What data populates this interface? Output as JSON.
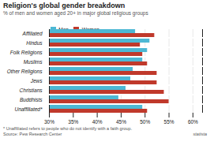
{
  "chart_data": {
    "type": "bar",
    "orientation": "horizontal",
    "title": "Religion's global gender breakdown",
    "subtitle": "% of men and women aged 20+ in major global religious groups",
    "categories": [
      "Affiliated",
      "Hindus",
      "Folk Religions",
      "Muslims",
      "Other Religions",
      "Jews",
      "Christians",
      "Buddhists",
      "Unaffiliated*"
    ],
    "series": [
      {
        "name": "Men",
        "color": "#4db8d4",
        "values": [
          48.0,
          51.0,
          50.5,
          49.5,
          47.5,
          47.0,
          46.0,
          44.5,
          49.5
        ]
      },
      {
        "name": "Women",
        "color": "#c0392b",
        "values": [
          52.0,
          49.0,
          49.5,
          50.5,
          52.5,
          52.5,
          54.0,
          55.0,
          50.5
        ]
      }
    ],
    "xlim": [
      30,
      62
    ],
    "xticks": [
      {
        "value": 30,
        "label": "30%"
      },
      {
        "value": 35,
        "label": "35%"
      },
      {
        "value": 40,
        "label": "40%"
      },
      {
        "value": 45,
        "label": "45%"
      },
      {
        "value": 50,
        "label": "50%"
      },
      {
        "value": 55,
        "label": "55%"
      },
      {
        "value": 60,
        "label": "60%"
      }
    ],
    "grid": true,
    "legend": "top",
    "annotations": [
      "* Unaffiliated refers to people who do not identify with a faith group.",
      "Source: Pew Research Center",
      "statista"
    ]
  }
}
